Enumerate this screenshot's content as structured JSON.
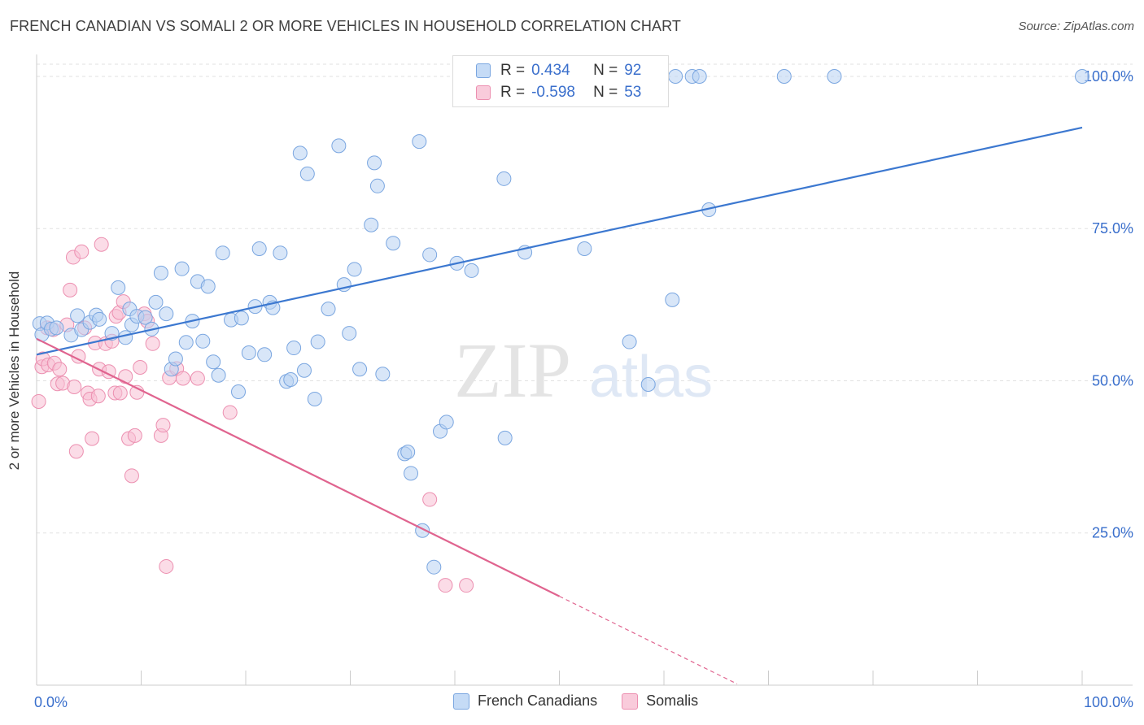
{
  "header": {
    "title": "FRENCH CANADIAN VS SOMALI 2 OR MORE VEHICLES IN HOUSEHOLD CORRELATION CHART",
    "source": "Source: ZipAtlas.com"
  },
  "watermark": {
    "zip": "ZIP",
    "atlas": "atlas"
  },
  "legend": {
    "rows": [
      {
        "r_label": "R =",
        "r_value": "0.434",
        "n_label": "N =",
        "n_value": "92",
        "color": "#9dbfef"
      },
      {
        "r_label": "R =",
        "r_value": "-0.598",
        "n_label": "N =",
        "n_value": "53",
        "color": "#f3aac3"
      }
    ]
  },
  "bottom_legend": [
    {
      "label": "French Canadians",
      "color": "#9dbfef"
    },
    {
      "label": "Somalis",
      "color": "#f3aac3"
    }
  ],
  "colors": {
    "blue_fill": "#b8d2f3",
    "blue_stroke": "#7aa6e0",
    "blue_line": "#3c78d0",
    "pink_fill": "#f7c0d3",
    "pink_stroke": "#ec8fb0",
    "pink_line": "#e0648f",
    "axis_text": "#3a6fcc",
    "grid": "#e2e2e2"
  },
  "chart_data": {
    "type": "scatter",
    "title": "FRENCH CANADIAN VS SOMALI 2 OR MORE VEHICLES IN HOUSEHOLD CORRELATION CHART",
    "xlabel": "",
    "ylabel": "2 or more Vehicles in Household",
    "xlim": [
      0,
      100
    ],
    "ylim": [
      0,
      102
    ],
    "x_tick_labels": [
      "0.0%",
      "100.0%"
    ],
    "y_ticks": [
      25,
      50,
      75,
      100
    ],
    "y_tick_labels": [
      "25.0%",
      "50.0%",
      "75.0%",
      "100.0%"
    ],
    "grid": true,
    "legend_position": "top-center",
    "series": [
      {
        "name": "French Canadians",
        "points": [
          [
            0.3,
            59.4
          ],
          [
            0.5,
            57.6
          ],
          [
            1.0,
            59.5
          ],
          [
            1.4,
            58.5
          ],
          [
            1.9,
            58.7
          ],
          [
            3.3,
            57.5
          ],
          [
            3.9,
            60.7
          ],
          [
            4.3,
            58.4
          ],
          [
            5.1,
            59.6
          ],
          [
            5.7,
            60.8
          ],
          [
            6.0,
            60.1
          ],
          [
            7.2,
            57.8
          ],
          [
            7.8,
            65.3
          ],
          [
            8.5,
            57.1
          ],
          [
            8.9,
            61.8
          ],
          [
            9.1,
            59.2
          ],
          [
            9.6,
            60.6
          ],
          [
            10.4,
            60.4
          ],
          [
            11.0,
            58.5
          ],
          [
            11.4,
            62.9
          ],
          [
            11.9,
            67.7
          ],
          [
            12.4,
            61.0
          ],
          [
            12.9,
            51.9
          ],
          [
            13.3,
            53.6
          ],
          [
            13.9,
            68.4
          ],
          [
            14.3,
            56.3
          ],
          [
            14.9,
            59.8
          ],
          [
            15.4,
            66.3
          ],
          [
            15.9,
            56.5
          ],
          [
            16.4,
            65.5
          ],
          [
            16.9,
            53.1
          ],
          [
            17.4,
            50.9
          ],
          [
            17.8,
            71.0
          ],
          [
            18.6,
            60.0
          ],
          [
            19.3,
            48.2
          ],
          [
            19.6,
            60.3
          ],
          [
            20.3,
            54.6
          ],
          [
            20.9,
            62.2
          ],
          [
            21.3,
            71.7
          ],
          [
            21.8,
            54.3
          ],
          [
            22.3,
            62.9
          ],
          [
            22.6,
            62.0
          ],
          [
            23.3,
            71.0
          ],
          [
            23.9,
            49.9
          ],
          [
            24.3,
            50.2
          ],
          [
            24.6,
            55.4
          ],
          [
            25.2,
            87.4
          ],
          [
            25.6,
            51.7
          ],
          [
            25.9,
            84.0
          ],
          [
            26.6,
            47.0
          ],
          [
            26.9,
            56.4
          ],
          [
            27.9,
            61.8
          ],
          [
            28.9,
            88.6
          ],
          [
            29.4,
            65.8
          ],
          [
            29.9,
            57.8
          ],
          [
            30.4,
            68.3
          ],
          [
            30.9,
            51.9
          ],
          [
            32.0,
            75.6
          ],
          [
            32.3,
            85.8
          ],
          [
            32.6,
            82.0
          ],
          [
            33.1,
            51.1
          ],
          [
            34.1,
            72.6
          ],
          [
            35.2,
            38.0
          ],
          [
            35.5,
            38.3
          ],
          [
            35.8,
            34.8
          ],
          [
            36.6,
            89.3
          ],
          [
            36.9,
            25.4
          ],
          [
            37.6,
            70.7
          ],
          [
            38.0,
            19.4
          ],
          [
            38.6,
            41.7
          ],
          [
            39.2,
            43.2
          ],
          [
            40.2,
            69.3
          ],
          [
            41.6,
            68.1
          ],
          [
            44.7,
            83.2
          ],
          [
            44.8,
            40.6
          ],
          [
            46.7,
            71.1
          ],
          [
            47.5,
            100
          ],
          [
            48.1,
            100
          ],
          [
            52.1,
            100
          ],
          [
            52.4,
            71.7
          ],
          [
            53.2,
            100
          ],
          [
            53.6,
            100
          ],
          [
            56.7,
            56.4
          ],
          [
            58.5,
            49.4
          ],
          [
            60.8,
            63.3
          ],
          [
            61.1,
            100
          ],
          [
            62.7,
            100
          ],
          [
            63.4,
            100
          ],
          [
            64.3,
            78.1
          ],
          [
            71.5,
            100
          ],
          [
            76.3,
            100
          ],
          [
            100,
            100
          ]
        ],
        "trend": {
          "x": [
            0,
            100
          ],
          "y": [
            54.3,
            91.6
          ]
        }
      },
      {
        "name": "Somalis",
        "points": [
          [
            0.2,
            46.6
          ],
          [
            0.5,
            52.3
          ],
          [
            0.6,
            53.6
          ],
          [
            1.0,
            58.7
          ],
          [
            1.1,
            52.6
          ],
          [
            1.6,
            58.4
          ],
          [
            1.7,
            52.9
          ],
          [
            2.0,
            49.5
          ],
          [
            2.2,
            51.9
          ],
          [
            2.5,
            49.6
          ],
          [
            2.9,
            59.2
          ],
          [
            3.2,
            64.9
          ],
          [
            3.5,
            70.3
          ],
          [
            3.6,
            49.0
          ],
          [
            3.8,
            38.4
          ],
          [
            4.0,
            54.0
          ],
          [
            4.3,
            71.2
          ],
          [
            4.6,
            58.7
          ],
          [
            4.9,
            48.0
          ],
          [
            5.1,
            47.0
          ],
          [
            5.3,
            40.5
          ],
          [
            5.6,
            56.2
          ],
          [
            5.9,
            47.5
          ],
          [
            6.0,
            51.9
          ],
          [
            6.2,
            72.4
          ],
          [
            6.6,
            56.1
          ],
          [
            6.9,
            51.5
          ],
          [
            7.2,
            56.5
          ],
          [
            7.5,
            48.0
          ],
          [
            7.6,
            60.6
          ],
          [
            7.9,
            61.2
          ],
          [
            8.0,
            48.0
          ],
          [
            8.3,
            63.0
          ],
          [
            8.5,
            50.7
          ],
          [
            8.8,
            40.5
          ],
          [
            9.1,
            34.4
          ],
          [
            9.4,
            41.0
          ],
          [
            9.6,
            48.1
          ],
          [
            9.9,
            52.2
          ],
          [
            10.3,
            61.0
          ],
          [
            10.6,
            59.8
          ],
          [
            11.1,
            56.1
          ],
          [
            11.9,
            41.0
          ],
          [
            12.1,
            42.7
          ],
          [
            12.4,
            19.5
          ],
          [
            12.7,
            50.5
          ],
          [
            13.4,
            52.0
          ],
          [
            14.0,
            50.4
          ],
          [
            15.4,
            50.4
          ],
          [
            18.5,
            44.8
          ],
          [
            37.6,
            30.5
          ],
          [
            39.1,
            16.4
          ],
          [
            41.1,
            16.4
          ]
        ],
        "trend": {
          "x": [
            0,
            50
          ],
          "y": [
            56.9,
            14.6
          ]
        },
        "trend_extension": {
          "x": [
            50,
            67
          ],
          "y": [
            14.6,
            0.2
          ]
        }
      }
    ]
  }
}
